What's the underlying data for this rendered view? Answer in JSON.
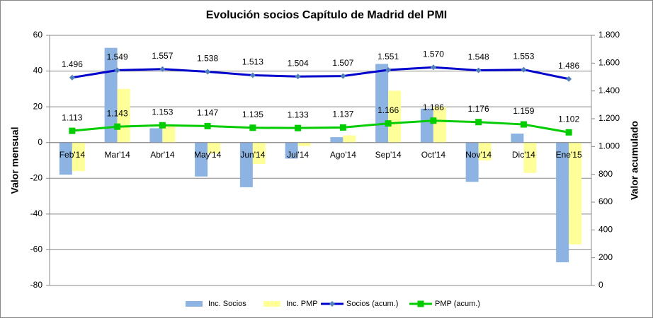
{
  "chart_data": {
    "type": "combo",
    "title": "Evolución socios Capítulo de Madrid del PMI",
    "ylabel": "Valor mensual",
    "y2label": "Valor acumulado",
    "categories": [
      "Feb'14",
      "Mar'14",
      "Abr'14",
      "May'14",
      "Jun'14",
      "Jul'14",
      "Ago'14",
      "Sep'14",
      "Oct'14",
      "Nov'14",
      "Dic'14",
      "Ene'15"
    ],
    "ylim": [
      -80,
      60
    ],
    "yticks": [
      -80,
      -60,
      -40,
      -20,
      0,
      20,
      40,
      60
    ],
    "y2lim": [
      0,
      1800
    ],
    "y2ticks": [
      0,
      200,
      400,
      600,
      800,
      {
        "value": 1000,
        "label": "1.000"
      },
      {
        "value": 1200,
        "label": "1.200"
      },
      {
        "value": 1400,
        "label": "1.400"
      },
      {
        "value": 1600,
        "label": "1.600"
      },
      {
        "value": 1800,
        "label": "1.800"
      }
    ],
    "grid": true,
    "legend": "bottom",
    "series": [
      {
        "name": "Inc. Socios",
        "type": "bar",
        "color": "#8db3e2",
        "values": [
          -18,
          53,
          8,
          -19,
          -25,
          -9,
          3,
          44,
          19,
          -22,
          5,
          -67
        ]
      },
      {
        "name": "Inc. PMP",
        "type": "bar",
        "color": "#ffff99",
        "values": [
          -16,
          30,
          10,
          -6,
          -12,
          -2,
          4,
          29,
          20,
          -10,
          -17,
          -57
        ]
      },
      {
        "name": "Socios (acum.)",
        "type": "line",
        "axis": "y2",
        "color": "#0000cc",
        "marker_color": "#4f81bd",
        "marker": "diamond",
        "values": [
          1496,
          1549,
          1557,
          1538,
          1513,
          1504,
          1507,
          1551,
          1570,
          1548,
          1553,
          1486
        ],
        "value_labels": [
          "1.496",
          "1.549",
          "1.557",
          "1.538",
          "1.513",
          "1.504",
          "1.507",
          "1.551",
          "1.570",
          "1.548",
          "1.553",
          "1.486"
        ]
      },
      {
        "name": "PMP (acum.)",
        "type": "line",
        "axis": "y2",
        "color": "#00cc00",
        "marker_color": "#00cc00",
        "marker": "square",
        "values": [
          1113,
          1143,
          1153,
          1147,
          1135,
          1133,
          1137,
          1166,
          1186,
          1176,
          1159,
          1102
        ],
        "value_labels": [
          "1.113",
          "1.143",
          "1.153",
          "1.147",
          "1.135",
          "1.133",
          "1.137",
          "1.166",
          "1.186",
          "1.176",
          "1.159",
          "1.102"
        ]
      }
    ]
  }
}
